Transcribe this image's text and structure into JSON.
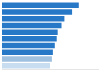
{
  "chart_data": {
    "type": "bar",
    "orientation": "horizontal",
    "categories": [
      null,
      null,
      null,
      null,
      null,
      null,
      null,
      null,
      null,
      null
    ],
    "values": [
      80,
      73,
      65,
      62,
      58,
      57,
      55,
      53,
      52,
      50
    ],
    "colors": [
      "#2878c8",
      "#2878c8",
      "#2878c8",
      "#2878c8",
      "#2878c8",
      "#2878c8",
      "#2878c8",
      "#2878c8",
      "#a0c0e0",
      "#c8ddf0"
    ],
    "xlim": [
      0,
      100
    ],
    "grid": false,
    "tick_labels": false
  }
}
